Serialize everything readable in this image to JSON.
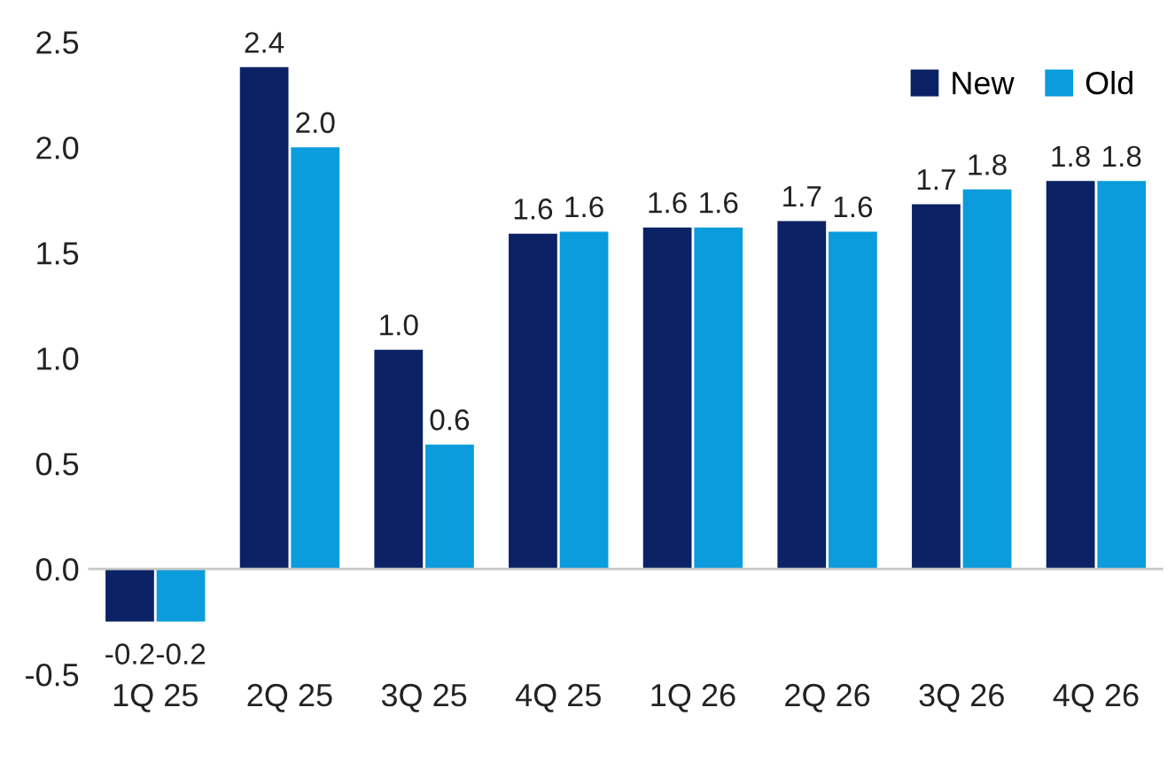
{
  "chart_data": {
    "type": "bar",
    "categories": [
      "1Q 25",
      "2Q 25",
      "3Q 25",
      "4Q 25",
      "1Q 26",
      "2Q 26",
      "3Q 26",
      "4Q 26"
    ],
    "series": [
      {
        "name": "New",
        "color": "#0b2265",
        "values": [
          -0.25,
          2.38,
          1.04,
          1.59,
          1.62,
          1.65,
          1.73,
          1.84
        ],
        "value_labels": [
          "-0.2",
          "2.4",
          "1.0",
          "1.6",
          "1.6",
          "1.7",
          "1.7",
          "1.8"
        ]
      },
      {
        "name": "Old",
        "color": "#0a9cdc",
        "values": [
          -0.25,
          2.0,
          0.59,
          1.6,
          1.62,
          1.6,
          1.8,
          1.84
        ],
        "value_labels": [
          "-0.2",
          "2.0",
          "0.6",
          "1.6",
          "1.6",
          "1.6",
          "1.8",
          "1.8"
        ]
      }
    ],
    "ylim": [
      -0.5,
      2.5
    ],
    "yticks": [
      {
        "value": -0.5,
        "label": "-0.5"
      },
      {
        "value": 0,
        "label": "0.0"
      },
      {
        "value": 0.5,
        "label": "0.5"
      },
      {
        "value": 1,
        "label": "1.0"
      },
      {
        "value": 1.5,
        "label": "1.5"
      },
      {
        "value": 2,
        "label": "2.0"
      },
      {
        "value": 2.5,
        "label": "2.5"
      }
    ],
    "ref_lines": [
      {
        "axis": "y",
        "value": 0,
        "color": "#c8c8c8"
      }
    ],
    "grid": false,
    "legend": "top right"
  }
}
